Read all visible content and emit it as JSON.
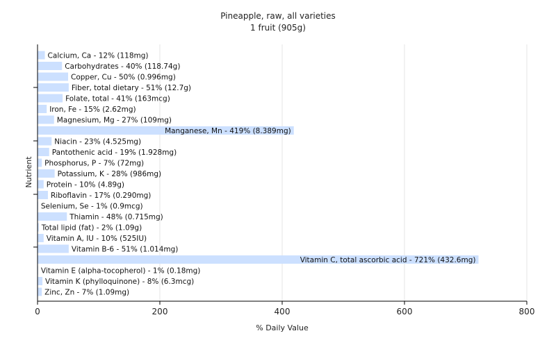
{
  "chart_data": {
    "type": "bar",
    "orientation": "horizontal",
    "title": "Pineapple, raw, all varieties",
    "subtitle": "1 fruit (905g)",
    "xlabel": "% Daily Value",
    "ylabel": "Nutrient",
    "xlim": [
      0,
      800
    ],
    "xticks": [
      0,
      200,
      400,
      600,
      800
    ],
    "grid": true,
    "bar_color": "#cce0ff",
    "categories": [
      "Calcium, Ca",
      "Carbohydrates",
      "Copper, Cu",
      "Fiber, total dietary",
      "Folate, total",
      "Iron, Fe",
      "Magnesium, Mg",
      "Manganese, Mn",
      "Niacin",
      "Pantothenic acid",
      "Phosphorus, P",
      "Potassium, K",
      "Protein",
      "Riboflavin",
      "Selenium, Se",
      "Thiamin",
      "Total lipid (fat)",
      "Vitamin A, IU",
      "Vitamin B-6",
      "Vitamin C, total ascorbic acid",
      "Vitamin E (alpha-tocopherol)",
      "Vitamin K (phylloquinone)",
      "Zinc, Zn"
    ],
    "values": [
      12,
      40,
      50,
      51,
      41,
      15,
      27,
      419,
      23,
      19,
      7,
      28,
      10,
      17,
      1,
      48,
      2,
      10,
      51,
      721,
      1,
      8,
      7
    ],
    "labels": [
      "Calcium, Ca - 12% (118mg)",
      "Carbohydrates - 40% (118.74g)",
      "Copper, Cu - 50% (0.996mg)",
      "Fiber, total dietary - 51% (12.7g)",
      "Folate, total - 41% (163mcg)",
      "Iron, Fe - 15% (2.62mg)",
      "Magnesium, Mg - 27% (109mg)",
      "Manganese, Mn - 419% (8.389mg)",
      "Niacin - 23% (4.525mg)",
      "Pantothenic acid - 19% (1.928mg)",
      "Phosphorus, P - 7% (72mg)",
      "Potassium, K - 28% (986mg)",
      "Protein - 10% (4.89g)",
      "Riboflavin - 17% (0.290mg)",
      "Selenium, Se - 1% (0.9mcg)",
      "Thiamin - 48% (0.715mg)",
      "Total lipid (fat) - 2% (1.09g)",
      "Vitamin A, IU - 10% (525IU)",
      "Vitamin B-6 - 51% (1.014mg)",
      "Vitamin C, total ascorbic acid - 721% (432.6mg)",
      "Vitamin E (alpha-tocopherol) - 1% (0.18mg)",
      "Vitamin K (phylloquinone) - 8% (6.3mcg)",
      "Zinc, Zn - 7% (1.09mg)"
    ]
  }
}
